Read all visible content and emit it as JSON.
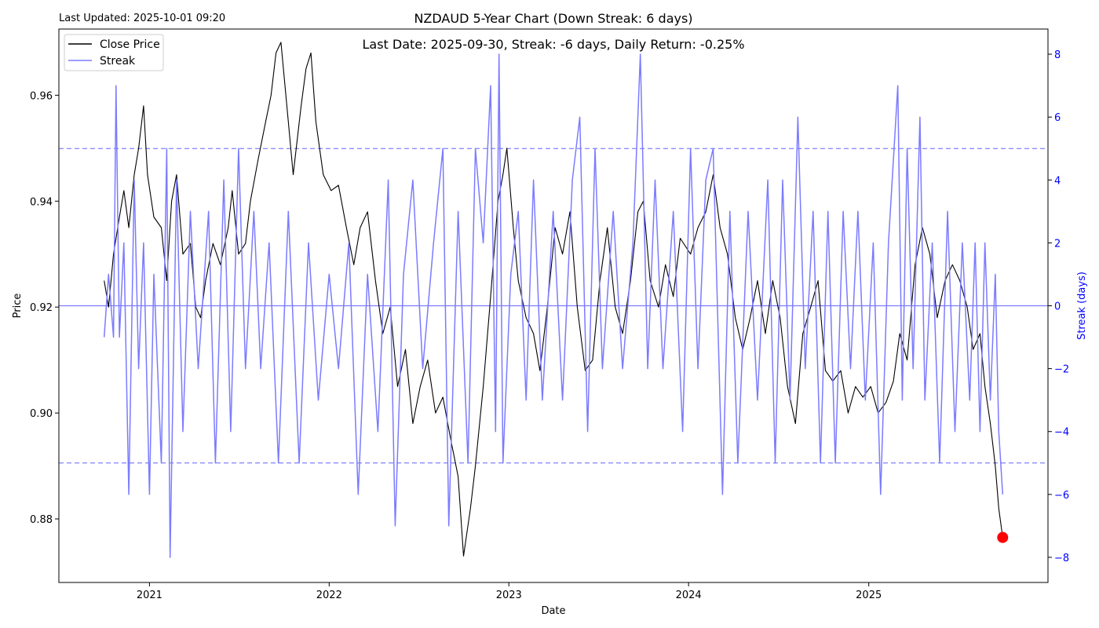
{
  "header": {
    "last_updated": "Last Updated: 2025-10-01 09:20",
    "title": "NZDAUD 5-Year Chart (Down Streak: 6 days)",
    "annotation": "Last Date: 2025-09-30, Streak: -6 days, Daily Return: -0.25%"
  },
  "legend": {
    "close_label": "Close Price",
    "streak_label": "Streak"
  },
  "colors": {
    "price": "#000000",
    "streak": "#7b7bff",
    "threshold": "#8080ff",
    "zero_line": "#7b7bff",
    "marker": "#ff0000",
    "right_axis": "#0000ff"
  },
  "chart_data": {
    "type": "line",
    "title": "NZDAUD 5-Year Chart (Down Streak: 6 days)",
    "xlabel": "Date",
    "ylabel": "Price",
    "y2label": "Streak (days)",
    "xlim": [
      "2020-07-01",
      "2025-12-31"
    ],
    "ylim": [
      0.868,
      0.9725
    ],
    "y2lim": [
      -8.8,
      8.8
    ],
    "x_ticks": [
      {
        "date": "2021-01-01",
        "label": "2021"
      },
      {
        "date": "2022-01-01",
        "label": "2022"
      },
      {
        "date": "2023-01-01",
        "label": "2023"
      },
      {
        "date": "2024-01-01",
        "label": "2024"
      },
      {
        "date": "2025-01-01",
        "label": "2025"
      }
    ],
    "y_ticks": [
      {
        "v": 0.88,
        "label": "0.88"
      },
      {
        "v": 0.9,
        "label": "0.90"
      },
      {
        "v": 0.92,
        "label": "0.92"
      },
      {
        "v": 0.94,
        "label": "0.94"
      },
      {
        "v": 0.96,
        "label": "0.96"
      }
    ],
    "y2_ticks": [
      {
        "v": 8,
        "label": "8"
      },
      {
        "v": 6,
        "label": "6"
      },
      {
        "v": 4,
        "label": "4"
      },
      {
        "v": 2,
        "label": "2"
      },
      {
        "v": 0,
        "label": "0"
      },
      {
        "v": -2,
        "label": "−2"
      },
      {
        "v": -4,
        "label": "−4"
      },
      {
        "v": -6,
        "label": "−6"
      },
      {
        "v": -8,
        "label": "−8"
      }
    ],
    "threshold_lines": [
      5,
      0,
      -5
    ],
    "legend_position": "upper-left",
    "series": [
      {
        "name": "Close Price",
        "axis": "left",
        "points": [
          [
            "2020-10-01",
            0.925
          ],
          [
            "2020-10-10",
            0.92
          ],
          [
            "2020-10-20",
            0.93
          ],
          [
            "2020-11-01",
            0.937
          ],
          [
            "2020-11-10",
            0.942
          ],
          [
            "2020-11-20",
            0.935
          ],
          [
            "2020-12-01",
            0.945
          ],
          [
            "2020-12-10",
            0.95
          ],
          [
            "2020-12-20",
            0.958
          ],
          [
            "2020-12-28",
            0.945
          ],
          [
            "2021-01-10",
            0.937
          ],
          [
            "2021-01-25",
            0.935
          ],
          [
            "2021-02-05",
            0.925
          ],
          [
            "2021-02-15",
            0.94
          ],
          [
            "2021-02-25",
            0.945
          ],
          [
            "2021-03-10",
            0.93
          ],
          [
            "2021-03-25",
            0.932
          ],
          [
            "2021-04-05",
            0.92
          ],
          [
            "2021-04-15",
            0.918
          ],
          [
            "2021-04-25",
            0.925
          ],
          [
            "2021-05-10",
            0.932
          ],
          [
            "2021-05-25",
            0.928
          ],
          [
            "2021-06-10",
            0.935
          ],
          [
            "2021-06-18",
            0.942
          ],
          [
            "2021-07-01",
            0.93
          ],
          [
            "2021-07-15",
            0.932
          ],
          [
            "2021-07-25",
            0.94
          ],
          [
            "2021-08-10",
            0.948
          ],
          [
            "2021-08-25",
            0.955
          ],
          [
            "2021-09-05",
            0.96
          ],
          [
            "2021-09-15",
            0.968
          ],
          [
            "2021-09-25",
            0.97
          ],
          [
            "2021-10-10",
            0.955
          ],
          [
            "2021-10-20",
            0.945
          ],
          [
            "2021-11-05",
            0.958
          ],
          [
            "2021-11-15",
            0.965
          ],
          [
            "2021-11-25",
            0.968
          ],
          [
            "2021-12-05",
            0.955
          ],
          [
            "2021-12-20",
            0.945
          ],
          [
            "2022-01-05",
            0.942
          ],
          [
            "2022-01-20",
            0.943
          ],
          [
            "2022-02-05",
            0.935
          ],
          [
            "2022-02-20",
            0.928
          ],
          [
            "2022-03-05",
            0.935
          ],
          [
            "2022-03-20",
            0.938
          ],
          [
            "2022-04-05",
            0.925
          ],
          [
            "2022-04-20",
            0.915
          ],
          [
            "2022-05-05",
            0.92
          ],
          [
            "2022-05-20",
            0.905
          ],
          [
            "2022-06-05",
            0.912
          ],
          [
            "2022-06-20",
            0.898
          ],
          [
            "2022-07-05",
            0.905
          ],
          [
            "2022-07-20",
            0.91
          ],
          [
            "2022-08-05",
            0.9
          ],
          [
            "2022-08-20",
            0.903
          ],
          [
            "2022-09-05",
            0.895
          ],
          [
            "2022-09-20",
            0.888
          ],
          [
            "2022-10-01",
            0.873
          ],
          [
            "2022-10-15",
            0.882
          ],
          [
            "2022-10-25",
            0.89
          ],
          [
            "2022-11-10",
            0.905
          ],
          [
            "2022-11-25",
            0.922
          ],
          [
            "2022-12-10",
            0.94
          ],
          [
            "2022-12-20",
            0.945
          ],
          [
            "2022-12-28",
            0.95
          ],
          [
            "2023-01-10",
            0.935
          ],
          [
            "2023-01-20",
            0.925
          ],
          [
            "2023-02-05",
            0.918
          ],
          [
            "2023-02-20",
            0.915
          ],
          [
            "2023-03-05",
            0.908
          ],
          [
            "2023-03-20",
            0.92
          ],
          [
            "2023-04-05",
            0.935
          ],
          [
            "2023-04-20",
            0.93
          ],
          [
            "2023-05-05",
            0.938
          ],
          [
            "2023-05-20",
            0.92
          ],
          [
            "2023-06-05",
            0.908
          ],
          [
            "2023-06-20",
            0.91
          ],
          [
            "2023-07-05",
            0.925
          ],
          [
            "2023-07-20",
            0.935
          ],
          [
            "2023-08-05",
            0.92
          ],
          [
            "2023-08-20",
            0.915
          ],
          [
            "2023-09-05",
            0.925
          ],
          [
            "2023-09-20",
            0.938
          ],
          [
            "2023-10-01",
            0.94
          ],
          [
            "2023-10-15",
            0.925
          ],
          [
            "2023-11-01",
            0.92
          ],
          [
            "2023-11-15",
            0.928
          ],
          [
            "2023-12-01",
            0.922
          ],
          [
            "2023-12-15",
            0.933
          ],
          [
            "2024-01-05",
            0.93
          ],
          [
            "2024-01-20",
            0.935
          ],
          [
            "2024-02-05",
            0.938
          ],
          [
            "2024-02-20",
            0.945
          ],
          [
            "2024-03-05",
            0.935
          ],
          [
            "2024-03-20",
            0.93
          ],
          [
            "2024-04-05",
            0.918
          ],
          [
            "2024-04-20",
            0.912
          ],
          [
            "2024-05-05",
            0.918
          ],
          [
            "2024-05-20",
            0.925
          ],
          [
            "2024-06-05",
            0.915
          ],
          [
            "2024-06-20",
            0.925
          ],
          [
            "2024-07-05",
            0.918
          ],
          [
            "2024-07-20",
            0.905
          ],
          [
            "2024-08-05",
            0.898
          ],
          [
            "2024-08-20",
            0.915
          ],
          [
            "2024-09-05",
            0.92
          ],
          [
            "2024-09-20",
            0.925
          ],
          [
            "2024-10-05",
            0.908
          ],
          [
            "2024-10-20",
            0.906
          ],
          [
            "2024-11-05",
            0.908
          ],
          [
            "2024-11-20",
            0.9
          ],
          [
            "2024-12-05",
            0.905
          ],
          [
            "2024-12-20",
            0.903
          ],
          [
            "2025-01-05",
            0.905
          ],
          [
            "2025-01-20",
            0.9
          ],
          [
            "2025-02-05",
            0.902
          ],
          [
            "2025-02-20",
            0.906
          ],
          [
            "2025-03-05",
            0.915
          ],
          [
            "2025-03-20",
            0.91
          ],
          [
            "2025-04-05",
            0.928
          ],
          [
            "2025-04-20",
            0.935
          ],
          [
            "2025-05-05",
            0.93
          ],
          [
            "2025-05-20",
            0.918
          ],
          [
            "2025-06-05",
            0.925
          ],
          [
            "2025-06-20",
            0.928
          ],
          [
            "2025-07-05",
            0.925
          ],
          [
            "2025-07-20",
            0.92
          ],
          [
            "2025-08-01",
            0.912
          ],
          [
            "2025-08-15",
            0.915
          ],
          [
            "2025-08-25",
            0.905
          ],
          [
            "2025-09-05",
            0.898
          ],
          [
            "2025-09-15",
            0.89
          ],
          [
            "2025-09-22",
            0.882
          ],
          [
            "2025-09-30",
            0.8765
          ]
        ]
      },
      {
        "name": "Streak",
        "axis": "right",
        "points": [
          [
            "2020-10-01",
            -1
          ],
          [
            "2020-10-10",
            1
          ],
          [
            "2020-10-20",
            -1
          ],
          [
            "2020-10-25",
            7
          ],
          [
            "2020-11-01",
            -1
          ],
          [
            "2020-11-10",
            2
          ],
          [
            "2020-11-20",
            -6
          ],
          [
            "2020-12-01",
            4
          ],
          [
            "2020-12-10",
            -2
          ],
          [
            "2020-12-20",
            2
          ],
          [
            "2021-01-01",
            -6
          ],
          [
            "2021-01-10",
            1
          ],
          [
            "2021-01-25",
            -5
          ],
          [
            "2021-02-05",
            5
          ],
          [
            "2021-02-12",
            -8
          ],
          [
            "2021-02-25",
            4
          ],
          [
            "2021-03-10",
            -4
          ],
          [
            "2021-03-25",
            3
          ],
          [
            "2021-04-10",
            -2
          ],
          [
            "2021-05-01",
            3
          ],
          [
            "2021-05-15",
            -5
          ],
          [
            "2021-06-01",
            4
          ],
          [
            "2021-06-15",
            -4
          ],
          [
            "2021-07-01",
            5
          ],
          [
            "2021-07-15",
            -2
          ],
          [
            "2021-08-01",
            3
          ],
          [
            "2021-08-15",
            -2
          ],
          [
            "2021-09-01",
            2
          ],
          [
            "2021-09-20",
            -5
          ],
          [
            "2021-10-10",
            3
          ],
          [
            "2021-11-01",
            -5
          ],
          [
            "2021-11-20",
            2
          ],
          [
            "2021-12-10",
            -3
          ],
          [
            "2022-01-01",
            1
          ],
          [
            "2022-01-20",
            -2
          ],
          [
            "2022-02-10",
            2
          ],
          [
            "2022-03-01",
            -6
          ],
          [
            "2022-03-20",
            1
          ],
          [
            "2022-04-10",
            -4
          ],
          [
            "2022-05-01",
            4
          ],
          [
            "2022-05-15",
            -7
          ],
          [
            "2022-06-01",
            1
          ],
          [
            "2022-06-20",
            4
          ],
          [
            "2022-07-10",
            -2
          ],
          [
            "2022-08-01",
            2
          ],
          [
            "2022-08-20",
            5
          ],
          [
            "2022-09-01",
            -7
          ],
          [
            "2022-09-20",
            3
          ],
          [
            "2022-10-10",
            -5
          ],
          [
            "2022-10-25",
            5
          ],
          [
            "2022-11-10",
            2
          ],
          [
            "2022-11-25",
            7
          ],
          [
            "2022-12-05",
            -4
          ],
          [
            "2022-12-12",
            8
          ],
          [
            "2022-12-20",
            -5
          ],
          [
            "2023-01-05",
            1
          ],
          [
            "2023-01-20",
            3
          ],
          [
            "2023-02-05",
            -3
          ],
          [
            "2023-02-20",
            4
          ],
          [
            "2023-03-10",
            -3
          ],
          [
            "2023-04-01",
            3
          ],
          [
            "2023-04-20",
            -3
          ],
          [
            "2023-05-10",
            4
          ],
          [
            "2023-05-25",
            6
          ],
          [
            "2023-06-10",
            -4
          ],
          [
            "2023-06-25",
            5
          ],
          [
            "2023-07-10",
            -2
          ],
          [
            "2023-08-01",
            3
          ],
          [
            "2023-08-20",
            -2
          ],
          [
            "2023-09-10",
            2
          ],
          [
            "2023-09-25",
            8
          ],
          [
            "2023-10-10",
            -2
          ],
          [
            "2023-10-25",
            4
          ],
          [
            "2023-11-10",
            -2
          ],
          [
            "2023-12-01",
            3
          ],
          [
            "2023-12-20",
            -4
          ],
          [
            "2024-01-05",
            5
          ],
          [
            "2024-01-20",
            -2
          ],
          [
            "2024-02-05",
            4
          ],
          [
            "2024-02-20",
            5
          ],
          [
            "2024-03-10",
            -6
          ],
          [
            "2024-03-25",
            3
          ],
          [
            "2024-04-10",
            -5
          ],
          [
            "2024-05-01",
            3
          ],
          [
            "2024-05-20",
            -3
          ],
          [
            "2024-06-10",
            4
          ],
          [
            "2024-06-25",
            -5
          ],
          [
            "2024-07-10",
            4
          ],
          [
            "2024-07-25",
            -3
          ],
          [
            "2024-08-10",
            6
          ],
          [
            "2024-08-25",
            -2
          ],
          [
            "2024-09-10",
            3
          ],
          [
            "2024-09-25",
            -5
          ],
          [
            "2024-10-10",
            3
          ],
          [
            "2024-10-25",
            -5
          ],
          [
            "2024-11-10",
            3
          ],
          [
            "2024-11-25",
            -2
          ],
          [
            "2024-12-10",
            3
          ],
          [
            "2024-12-25",
            -3
          ],
          [
            "2025-01-10",
            2
          ],
          [
            "2025-01-25",
            -6
          ],
          [
            "2025-02-10",
            2
          ],
          [
            "2025-03-01",
            7
          ],
          [
            "2025-03-10",
            -3
          ],
          [
            "2025-03-20",
            5
          ],
          [
            "2025-04-01",
            -2
          ],
          [
            "2025-04-15",
            6
          ],
          [
            "2025-04-25",
            -3
          ],
          [
            "2025-05-10",
            2
          ],
          [
            "2025-05-25",
            -5
          ],
          [
            "2025-06-10",
            3
          ],
          [
            "2025-06-25",
            -4
          ],
          [
            "2025-07-10",
            2
          ],
          [
            "2025-07-25",
            -3
          ],
          [
            "2025-08-05",
            2
          ],
          [
            "2025-08-15",
            -4
          ],
          [
            "2025-08-25",
            2
          ],
          [
            "2025-09-05",
            -3
          ],
          [
            "2025-09-15",
            1
          ],
          [
            "2025-09-22",
            -4
          ],
          [
            "2025-09-30",
            -6
          ]
        ]
      }
    ],
    "marker": {
      "date": "2025-09-30",
      "value": 0.8765
    }
  }
}
